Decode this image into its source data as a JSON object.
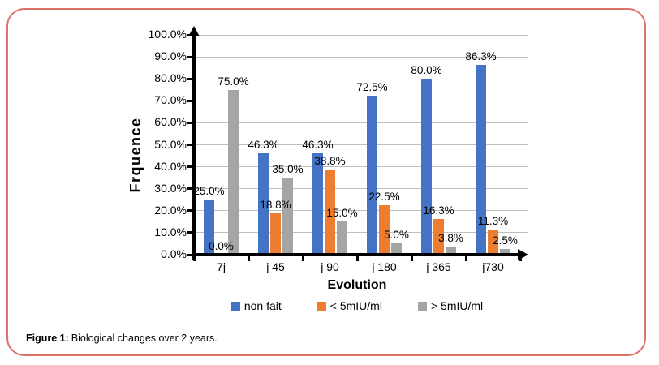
{
  "figure": {
    "caption_label": "Figure 1:",
    "caption_text": "Biological changes over 2 years.",
    "border_color": "#DC7369"
  },
  "chart_data": {
    "type": "bar",
    "xlabel": "Evolution",
    "ylabel": "Frquence",
    "ylim": [
      0,
      100
    ],
    "grid": true,
    "legend_position": "bottom",
    "axis_color": "#000000",
    "gridline_color": "#BFBFBF",
    "y_ticks": [
      {
        "value": 100,
        "label": "100.0%"
      },
      {
        "value": 90,
        "label": "90.0%"
      },
      {
        "value": 80,
        "label": "80.0%"
      },
      {
        "value": 70,
        "label": "70.0%"
      },
      {
        "value": 60,
        "label": "60.0%"
      },
      {
        "value": 50,
        "label": "50.0%"
      },
      {
        "value": 40,
        "label": "40.0%"
      },
      {
        "value": 30,
        "label": "30.0%"
      },
      {
        "value": 20,
        "label": "20.0%"
      },
      {
        "value": 10,
        "label": "10.0%"
      },
      {
        "value": 0,
        "label": "0.0%"
      }
    ],
    "categories": [
      "7j",
      "j 45",
      "j 90",
      "j 180",
      "j 365",
      "j730"
    ],
    "series": [
      {
        "name": "non fait",
        "color": "#4472C4",
        "values": [
          25.0,
          46.3,
          46.3,
          72.5,
          80.0,
          86.3
        ],
        "labels": [
          "25.0%",
          "46.3%",
          "46.3%",
          "72.5%",
          "80.0%",
          "86.3%"
        ]
      },
      {
        "name": "< 5mIU/ml",
        "color": "#ED7D31",
        "values": [
          0.0,
          18.8,
          38.8,
          22.5,
          16.3,
          11.3
        ],
        "labels": [
          "0.0%",
          "18.8%",
          "38.8%",
          "22.5%",
          "16.3%",
          "11.3%"
        ]
      },
      {
        "name": "> 5mIU/ml",
        "color": "#A5A5A5",
        "values": [
          75.0,
          35.0,
          15.0,
          5.0,
          3.8,
          2.5
        ],
        "labels": [
          "75.0%",
          "35.0%",
          "15.0%",
          "5.0%",
          "3.8%",
          "2.5%"
        ]
      }
    ]
  }
}
